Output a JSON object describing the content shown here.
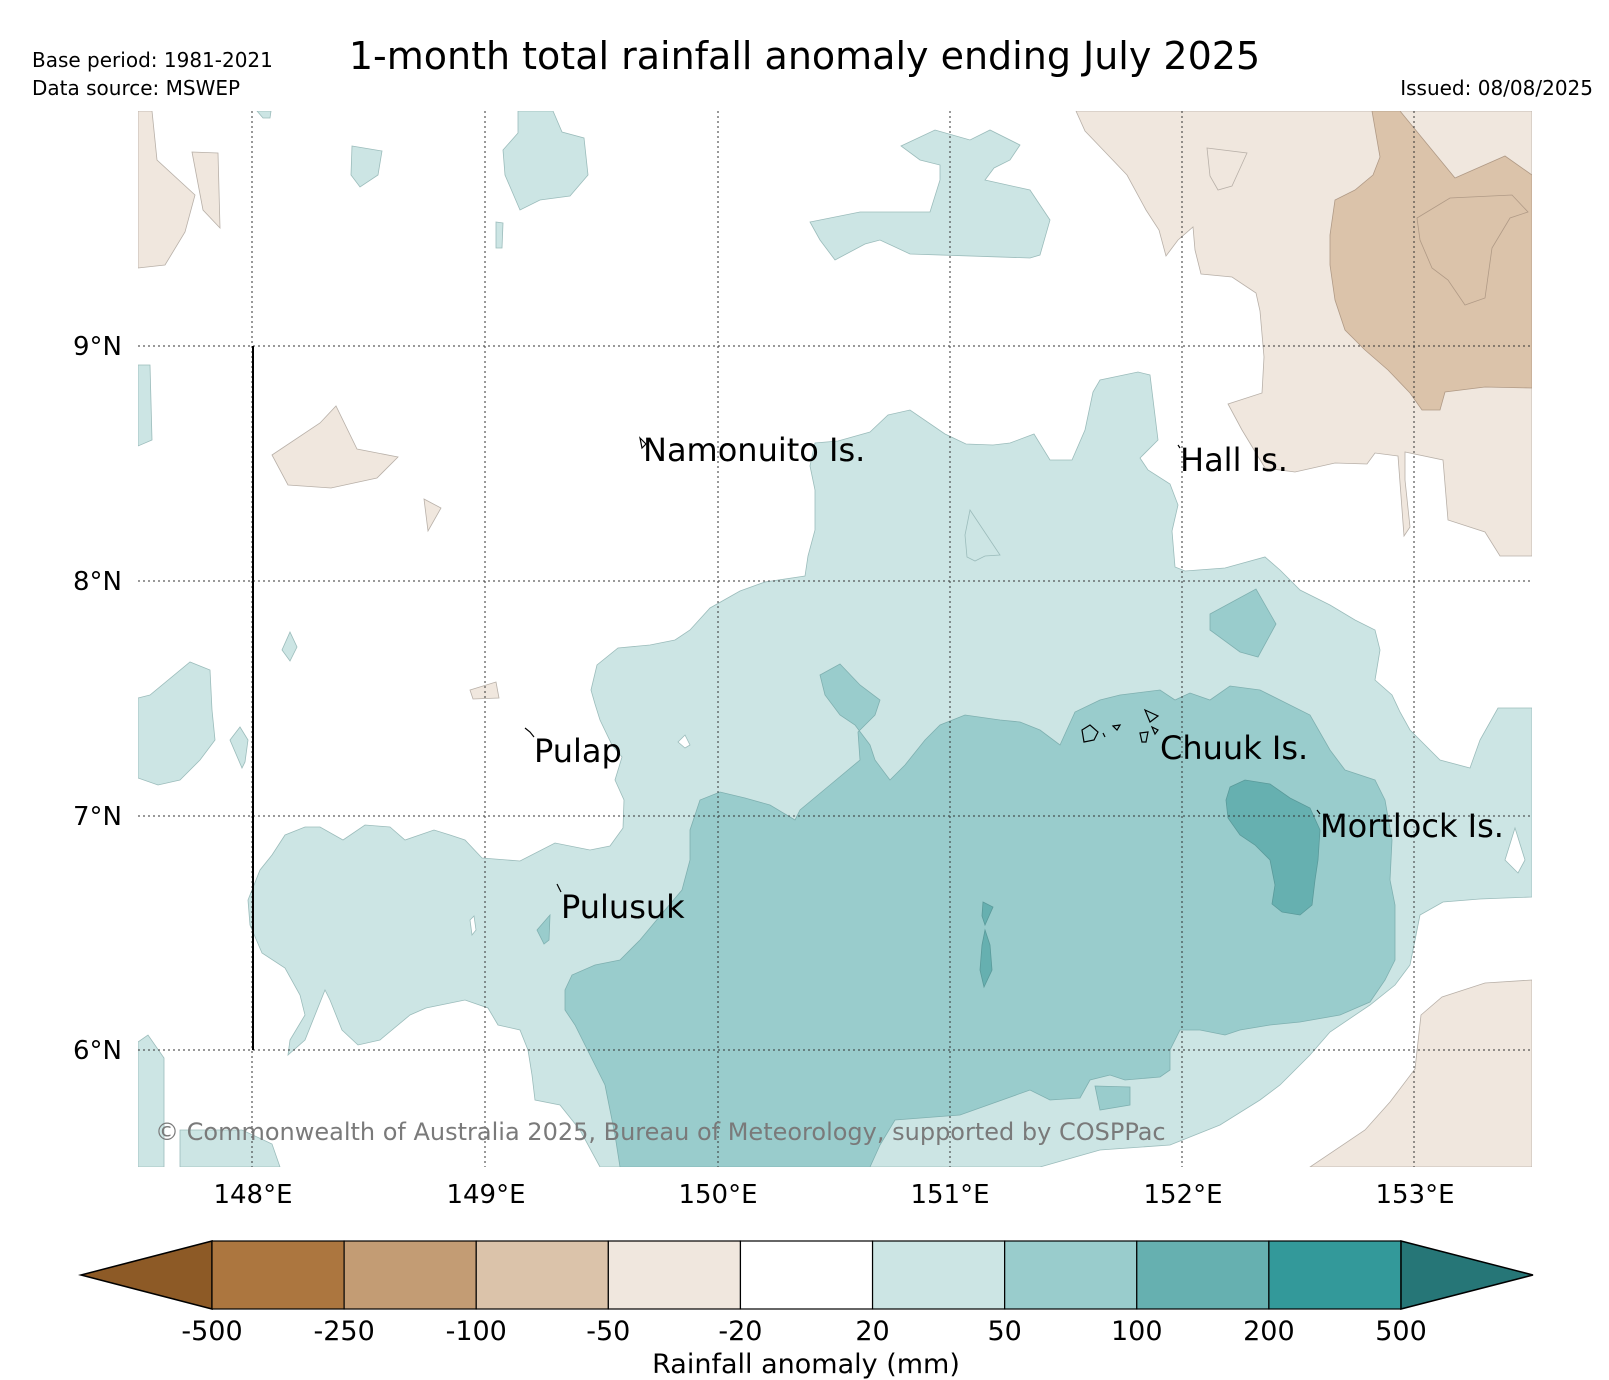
{
  "header": {
    "base_period": "Base period: 1981-2021",
    "data_source": "Data source: MSWEP",
    "title": "1-month total rainfall anomaly ending July 2025",
    "issued": "Issued: 08/08/2025"
  },
  "map": {
    "lat_labels": [
      "9°N",
      "8°N",
      "7°N",
      "6°N"
    ],
    "lon_labels": [
      "148°E",
      "149°E",
      "150°E",
      "151°E",
      "152°E",
      "153°E"
    ],
    "islands": [
      "Namonuito Is.",
      "Hall Is.",
      "Pulap",
      "Chuuk Is.",
      "Mortlock Is.",
      "Pulusuk"
    ],
    "copyright": "© Commonwealth of Australia 2025, Bureau of Meteorology, supported by COSPPac",
    "colors": {
      "dry_light": "#f0e7de",
      "dry_mid": "#dbc3aa",
      "wet_light": "#cce5e4",
      "wet_mid": "#99cccc",
      "wet_strong": "#66b0b0"
    }
  },
  "colorbar": {
    "title": "Rainfall anomaly (mm)",
    "ticks": [
      "-500",
      "-250",
      "-100",
      "-50",
      "-20",
      "20",
      "50",
      "100",
      "200",
      "500"
    ],
    "colors": [
      "#8d5a26",
      "#ac763f",
      "#c39c74",
      "#dbc3aa",
      "#f0e7de",
      "#ffffff",
      "#cce5e4",
      "#99cccc",
      "#66b0b0",
      "#33999a",
      "#267677"
    ]
  }
}
